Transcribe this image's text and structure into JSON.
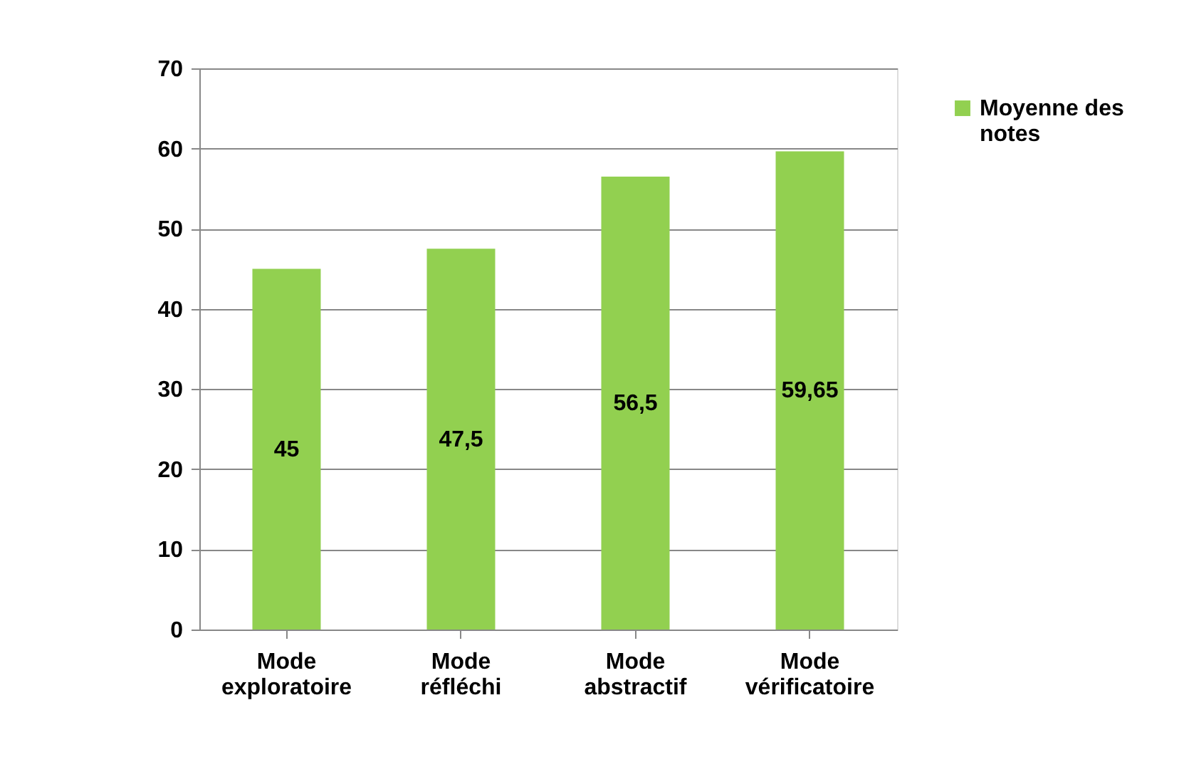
{
  "chart_data": {
    "type": "bar",
    "categories": [
      "Mode exploratoire",
      "Mode réfléchi",
      "Mode abstractif",
      "Mode vérificatoire"
    ],
    "series": [
      {
        "name": "Moyenne des notes",
        "color": "#92d050",
        "values": [
          45,
          47.5,
          56.5,
          59.65
        ],
        "value_labels": [
          "45",
          "47,5",
          "56,5",
          "59,65"
        ]
      }
    ],
    "ylim": [
      0,
      70
    ],
    "yticks": [
      0,
      10,
      20,
      30,
      40,
      50,
      60,
      70
    ],
    "grid": "y",
    "legend": "right"
  }
}
